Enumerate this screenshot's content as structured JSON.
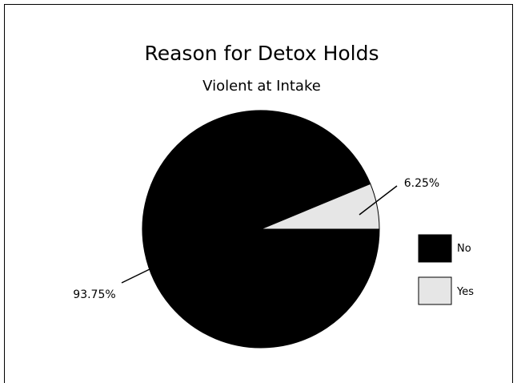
{
  "chart_data": {
    "type": "pie",
    "title": "Reason for Detox Holds",
    "subtitle": "Violent at Intake",
    "slices": [
      {
        "name": "No",
        "value": 93.75,
        "label": "93.75%",
        "color": "#000000"
      },
      {
        "name": "Yes",
        "value": 6.25,
        "label": "6.25%",
        "color": "#e6e6e6"
      }
    ],
    "legend_position": "right"
  }
}
